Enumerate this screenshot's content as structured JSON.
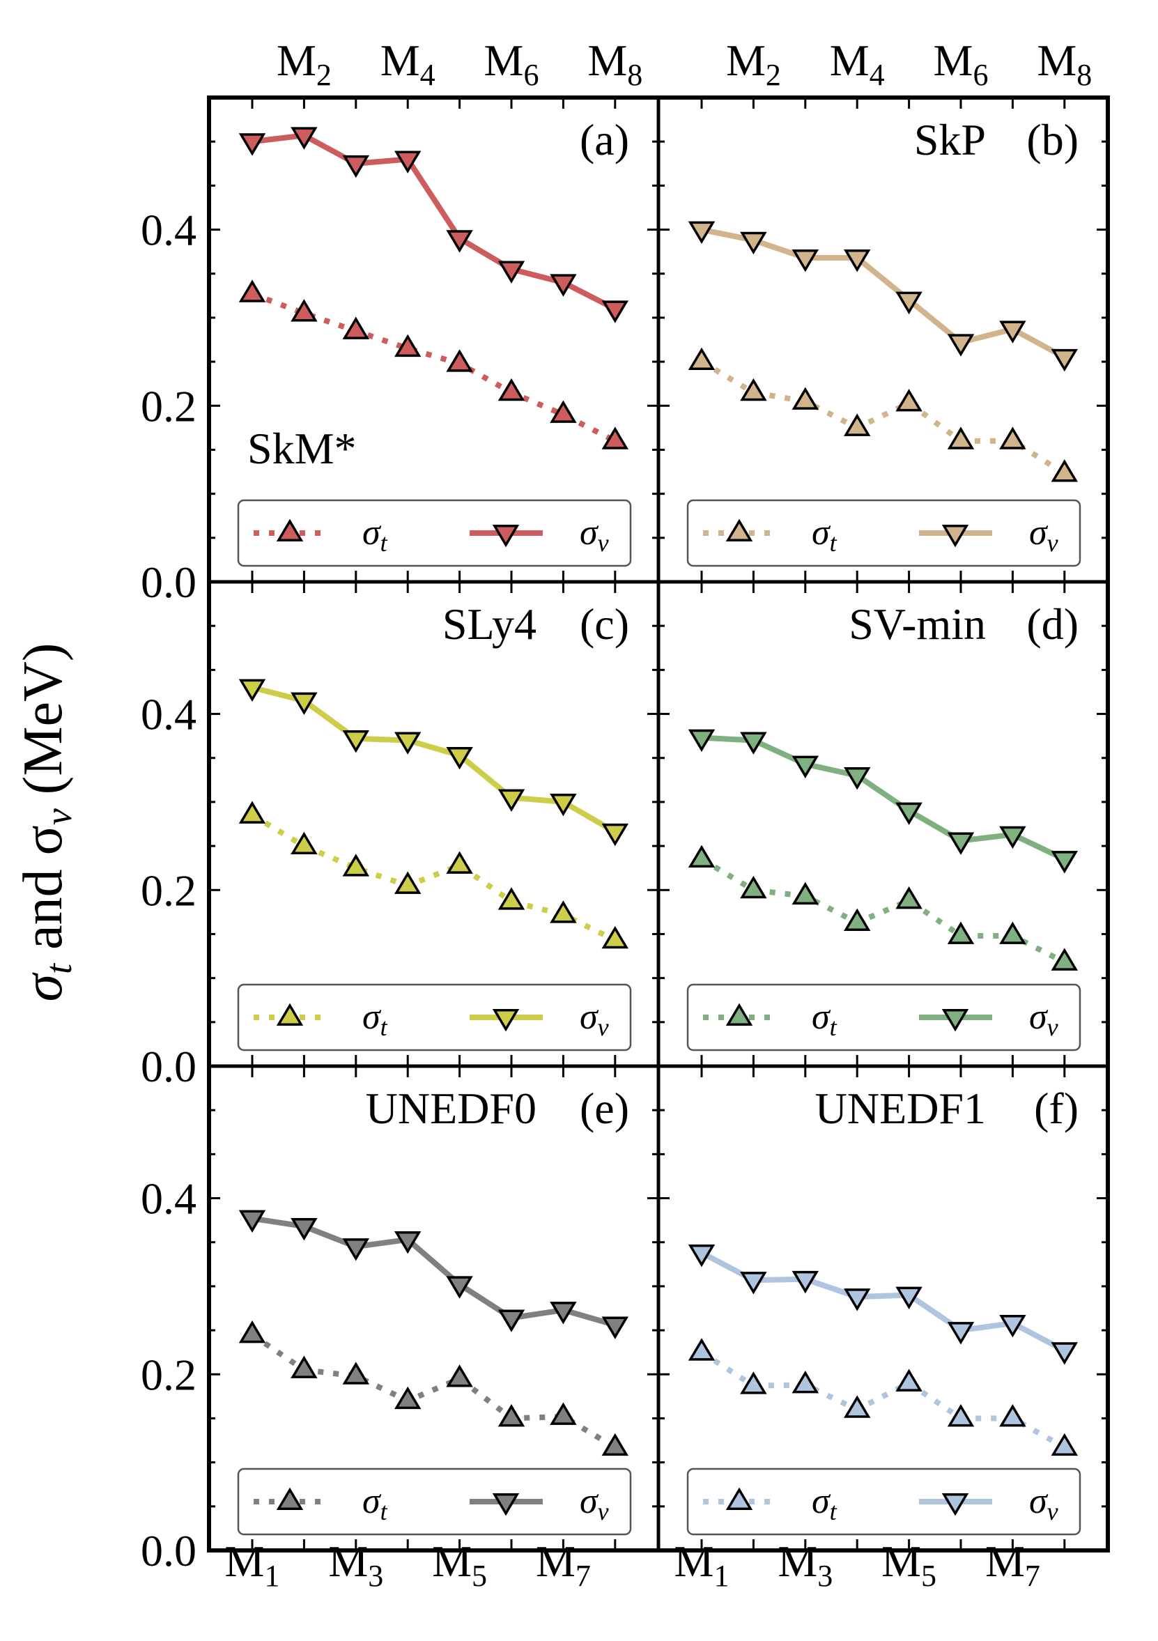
{
  "figure": {
    "ylabel_main": "σ",
    "ylabel_sub_t": "t",
    "ylabel_mid": " and σ",
    "ylabel_sub_v": "v",
    "ylabel_unit": " (MeV)"
  },
  "chart_data": [
    {
      "type": "line",
      "panel": "(a)",
      "name": "SkM*",
      "color": "#cd5c5c",
      "ylim": [
        0,
        0.55
      ],
      "yticks": [
        "0.0",
        "0.2",
        "0.4"
      ],
      "categories": [
        "M1",
        "M2",
        "M3",
        "M4",
        "M5",
        "M6",
        "M7",
        "M8"
      ],
      "series": [
        {
          "name": "σt",
          "style": "dotted",
          "marker": "triangle-up",
          "values": [
            0.327,
            0.305,
            0.285,
            0.265,
            0.248,
            0.215,
            0.19,
            0.16
          ]
        },
        {
          "name": "σv",
          "style": "solid",
          "marker": "triangle-down",
          "values": [
            0.5,
            0.507,
            0.475,
            0.48,
            0.39,
            0.355,
            0.34,
            0.31
          ]
        }
      ],
      "legend": "bottom"
    },
    {
      "type": "line",
      "panel": "(b)",
      "name": "SkP",
      "color": "#d2b48c",
      "ylim": [
        0,
        0.55
      ],
      "yticks": [
        "0.0",
        "0.2",
        "0.4"
      ],
      "categories": [
        "M1",
        "M2",
        "M3",
        "M4",
        "M5",
        "M6",
        "M7",
        "M8"
      ],
      "series": [
        {
          "name": "σt",
          "style": "dotted",
          "marker": "triangle-up",
          "values": [
            0.25,
            0.215,
            0.205,
            0.175,
            0.203,
            0.16,
            0.16,
            0.123
          ]
        },
        {
          "name": "σv",
          "style": "solid",
          "marker": "triangle-down",
          "values": [
            0.4,
            0.388,
            0.368,
            0.368,
            0.32,
            0.272,
            0.287,
            0.255
          ]
        }
      ],
      "legend": "bottom"
    },
    {
      "type": "line",
      "panel": "(c)",
      "name": "SLy4",
      "color": "#cdcd4a",
      "ylim": [
        0,
        0.55
      ],
      "yticks": [
        "0.0",
        "0.2",
        "0.4"
      ],
      "categories": [
        "M1",
        "M2",
        "M3",
        "M4",
        "M5",
        "M6",
        "M7",
        "M8"
      ],
      "series": [
        {
          "name": "σt",
          "style": "dotted",
          "marker": "triangle-up",
          "values": [
            0.285,
            0.25,
            0.225,
            0.205,
            0.228,
            0.187,
            0.172,
            0.143
          ]
        },
        {
          "name": "σv",
          "style": "solid",
          "marker": "triangle-down",
          "values": [
            0.43,
            0.415,
            0.372,
            0.37,
            0.353,
            0.305,
            0.3,
            0.266
          ]
        }
      ],
      "legend": "bottom"
    },
    {
      "type": "line",
      "panel": "(d)",
      "name": "SV-min",
      "color": "#7fb07f",
      "ylim": [
        0,
        0.55
      ],
      "yticks": [
        "0.0",
        "0.2",
        "0.4"
      ],
      "categories": [
        "M1",
        "M2",
        "M3",
        "M4",
        "M5",
        "M6",
        "M7",
        "M8"
      ],
      "series": [
        {
          "name": "σt",
          "style": "dotted",
          "marker": "triangle-up",
          "values": [
            0.235,
            0.2,
            0.193,
            0.163,
            0.188,
            0.148,
            0.148,
            0.118
          ]
        },
        {
          "name": "σv",
          "style": "solid",
          "marker": "triangle-down",
          "values": [
            0.373,
            0.37,
            0.343,
            0.33,
            0.29,
            0.256,
            0.263,
            0.235
          ]
        }
      ],
      "legend": "bottom"
    },
    {
      "type": "line",
      "panel": "(e)",
      "name": "UNEDF0",
      "color": "#808080",
      "ylim": [
        0,
        0.55
      ],
      "yticks": [
        "0.0",
        "0.2",
        "0.4"
      ],
      "categories": [
        "M1",
        "M2",
        "M3",
        "M4",
        "M5",
        "M6",
        "M7",
        "M8"
      ],
      "series": [
        {
          "name": "σt",
          "style": "dotted",
          "marker": "triangle-up",
          "values": [
            0.245,
            0.205,
            0.198,
            0.17,
            0.195,
            0.15,
            0.152,
            0.117
          ]
        },
        {
          "name": "σv",
          "style": "solid",
          "marker": "triangle-down",
          "values": [
            0.377,
            0.368,
            0.345,
            0.353,
            0.302,
            0.264,
            0.273,
            0.256
          ]
        }
      ],
      "legend": "bottom"
    },
    {
      "type": "line",
      "panel": "(f)",
      "name": "UNEDF1",
      "color": "#afc4de",
      "ylim": [
        0,
        0.55
      ],
      "yticks": [
        "0.0",
        "0.2",
        "0.4"
      ],
      "categories": [
        "M1",
        "M2",
        "M3",
        "M4",
        "M5",
        "M6",
        "M7",
        "M8"
      ],
      "series": [
        {
          "name": "σt",
          "style": "dotted",
          "marker": "triangle-up",
          "values": [
            0.225,
            0.187,
            0.188,
            0.16,
            0.19,
            0.15,
            0.15,
            0.117
          ]
        },
        {
          "name": "σv",
          "style": "solid",
          "marker": "triangle-down",
          "values": [
            0.338,
            0.307,
            0.308,
            0.288,
            0.29,
            0.25,
            0.258,
            0.227
          ]
        }
      ],
      "legend": "bottom"
    }
  ]
}
